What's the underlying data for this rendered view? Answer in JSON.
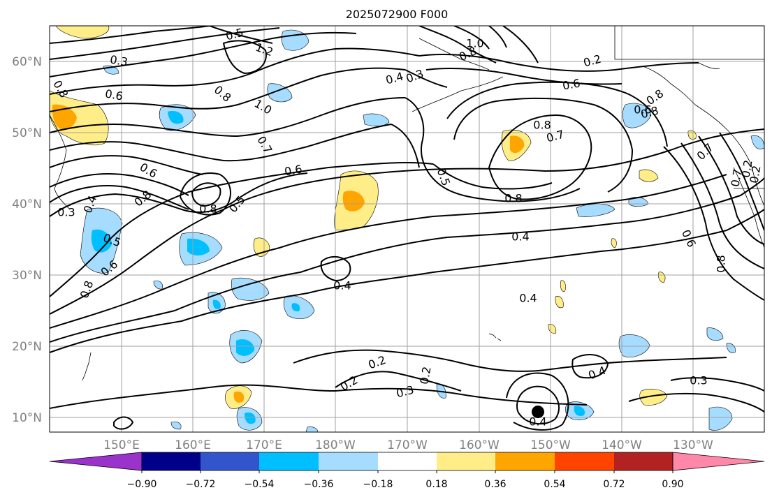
{
  "title": "2025072900 F000",
  "map": {
    "lat_labels": [
      "60°N",
      "50°N",
      "40°N",
      "30°N",
      "20°N",
      "10°N"
    ],
    "lon_labels": [
      "150°E",
      "160°E",
      "170°E",
      "180°W",
      "170°W",
      "160°W",
      "150°W",
      "140°W",
      "130°W"
    ],
    "contour_labels": [
      "0.5",
      "1.2",
      "0.3",
      "0.8",
      "1.0",
      "0.8",
      "0.2",
      "0.4",
      "0.3",
      "0.8",
      "0.6",
      "0.6",
      "1.0",
      "0.8",
      "0.7",
      "0.8",
      "0.6",
      "0.7",
      "0.6",
      "0.5",
      "0.8",
      "0.8",
      "0.5",
      "0.7",
      "0.8",
      "0.3",
      "0.4",
      "0.5",
      "0.6",
      "0.8",
      "0.4",
      "0.4",
      "0.4",
      "0.2",
      "0.2",
      "0.3",
      "0.2",
      "0.4",
      "0.4",
      "0.3",
      "0.2",
      "0.6",
      "0.8",
      "0.7",
      "0.6",
      "0.8",
      "0.2"
    ],
    "colors": {
      "gridline": "#a0a0a0",
      "contour": "#000000",
      "neg_light": "#a6dcff",
      "neg_mid": "#00bfff",
      "pos_light": "#ffee88",
      "pos_mid": "#ffa500"
    }
  },
  "colorbar": {
    "tick_labels": [
      "−0.90",
      "−0.72",
      "−0.54",
      "−0.36",
      "−0.18",
      "0.18",
      "0.36",
      "0.54",
      "0.72",
      "0.90"
    ],
    "colors": [
      "#9933cc",
      "#000088",
      "#3355cc",
      "#00bfff",
      "#a6dcff",
      "#ffffff",
      "#ffee88",
      "#ffa500",
      "#ff4400",
      "#b22222",
      "#ff88aa"
    ]
  }
}
